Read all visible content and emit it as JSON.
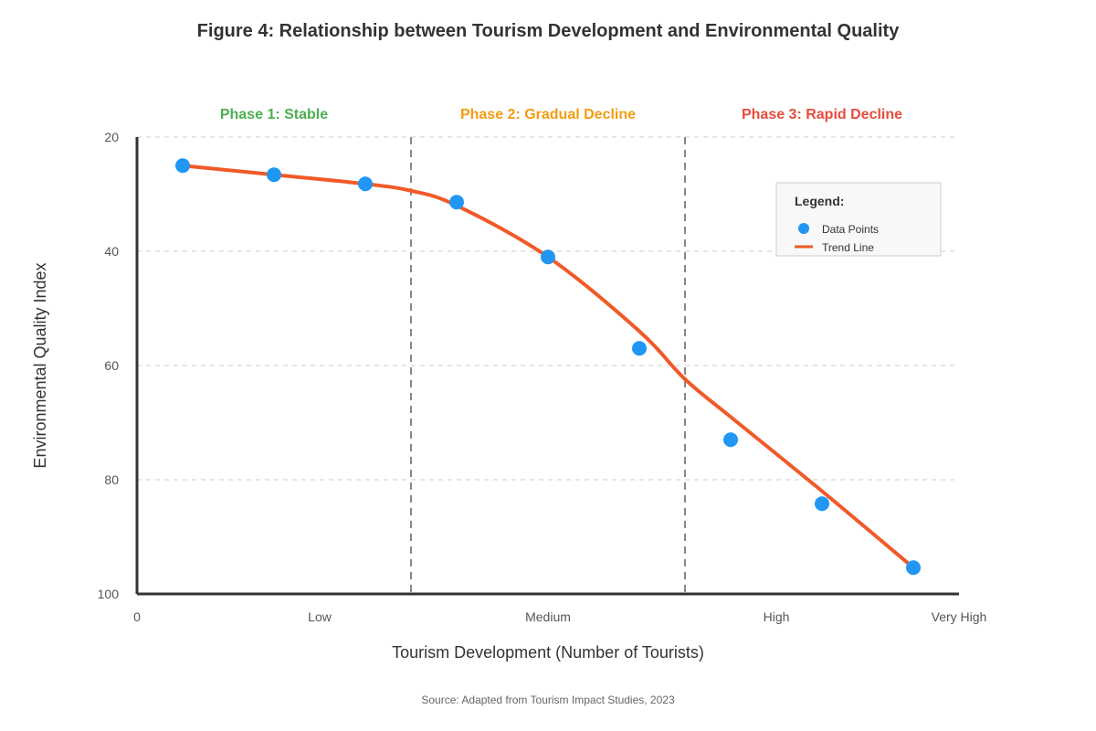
{
  "chart_data": {
    "type": "scatter",
    "title": "Figure 4: Relationship between Tourism Development and Environmental Quality",
    "xlabel": "Tourism Development (Number of Tourists)",
    "ylabel": "Environmental Quality Index",
    "x_ticks": [
      {
        "label": "0",
        "value": 0
      },
      {
        "label": "Low",
        "value": 2
      },
      {
        "label": "Medium",
        "value": 4.5
      },
      {
        "label": "High",
        "value": 7
      },
      {
        "label": "Very High",
        "value": 9
      }
    ],
    "y_ticks": [
      20,
      40,
      60,
      80,
      100
    ],
    "xlim": [
      0,
      9
    ],
    "ylim": [
      20,
      100
    ],
    "y_inverted": true,
    "grid": "horizontal dashed",
    "legend_position": "top-right",
    "phases": [
      {
        "label": "Phase 1: Stable",
        "color": "#4caf50",
        "x_start": 0,
        "x_end": 3
      },
      {
        "label": "Phase 2: Gradual Decline",
        "color": "#f39c12",
        "x_start": 3,
        "x_end": 6
      },
      {
        "label": "Phase 3: Rapid Decline",
        "color": "#e74c3c",
        "x_start": 6,
        "x_end": 9
      }
    ],
    "series": [
      {
        "name": "Data Points",
        "kind": "points",
        "color": "#2196f3",
        "x": [
          0.5,
          1.5,
          2.5,
          3.5,
          4.5,
          5.5,
          6.5,
          7.5,
          8.5
        ],
        "y": [
          25,
          26.6,
          28.2,
          31.4,
          41,
          57,
          73,
          84.2,
          95.4
        ]
      },
      {
        "name": "Trend Line",
        "kind": "line",
        "color": "#f05a28",
        "x": [
          0.5,
          1.5,
          2.5,
          3.0,
          3.5,
          4.5,
          5.5,
          6.0,
          6.5,
          7.5,
          8.5
        ],
        "y": [
          25,
          26.6,
          28.2,
          29.4,
          32,
          41,
          54,
          62.4,
          69,
          82,
          95.4
        ]
      }
    ],
    "legend_title": "Legend:",
    "source": "Source: Adapted from Tourism Impact Studies, 2023"
  }
}
